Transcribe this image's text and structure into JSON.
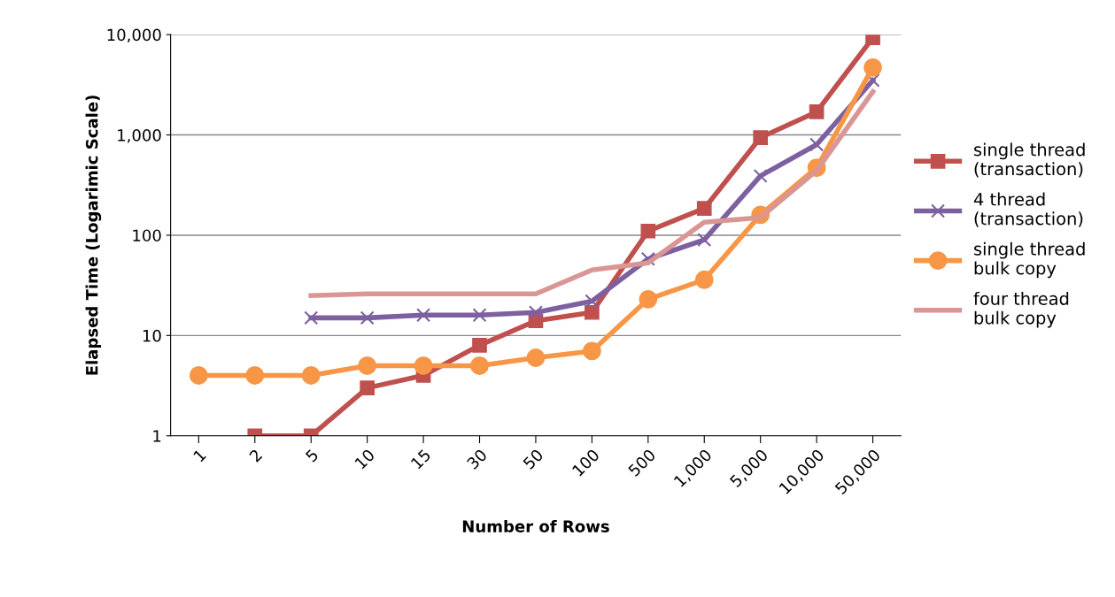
{
  "chart_data": {
    "type": "line",
    "xlabel": "Number of Rows",
    "ylabel": "Elapsed Time (Logarimic Scale)",
    "categories": [
      "1",
      "2",
      "5",
      "10",
      "15",
      "30",
      "50",
      "100",
      "500",
      "1,000",
      "5,000",
      "10,000",
      "50,000"
    ],
    "log": "y",
    "ylim": [
      1,
      10000
    ],
    "yticks": [
      1,
      10,
      100,
      {
        "value": 1000,
        "label": "1,000"
      },
      {
        "value": 10000,
        "label": "10,000"
      }
    ],
    "grid": "y",
    "legend": "right",
    "series": [
      {
        "name": "single thread\n(transaction)",
        "color": "#c0504d",
        "marker": "square",
        "values": [
          null,
          1,
          1,
          3,
          4,
          8,
          14,
          17,
          110,
          185,
          940,
          1700,
          9300
        ]
      },
      {
        "name": "4 thread\n(transaction)",
        "color": "#7d60a0",
        "marker": "cross",
        "values": [
          null,
          null,
          15,
          15,
          16,
          16,
          17,
          22,
          58,
          90,
          390,
          800,
          3500
        ]
      },
      {
        "name": "single thread\nbulk copy",
        "color": "#f79646",
        "marker": "circle",
        "values": [
          4,
          4,
          4,
          5,
          5,
          5,
          6,
          7,
          23,
          36,
          160,
          470,
          4700
        ]
      },
      {
        "name": "four thread\nbulk copy",
        "color": "#d99694",
        "marker": "none",
        "values": [
          null,
          null,
          25,
          26,
          26,
          26,
          26,
          45,
          53,
          135,
          150,
          440,
          2700
        ]
      }
    ]
  }
}
